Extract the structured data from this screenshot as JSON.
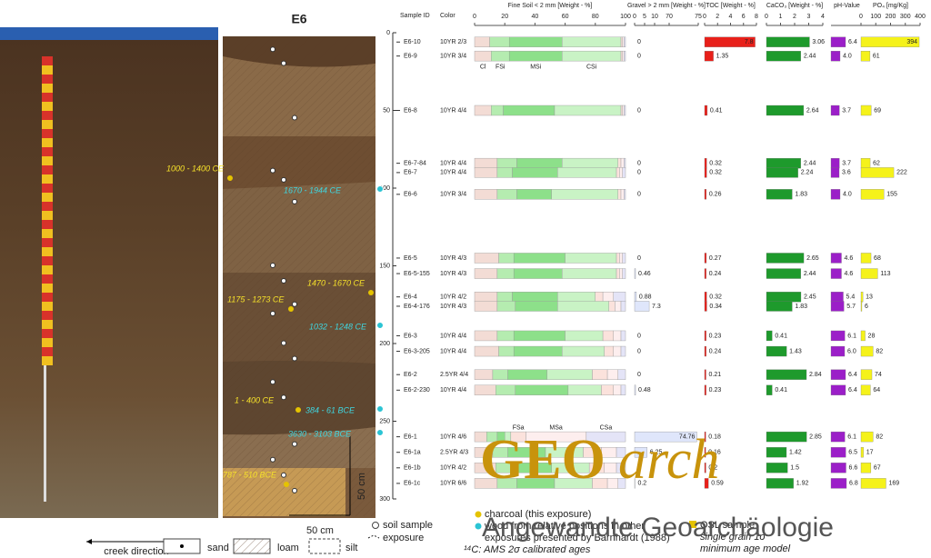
{
  "title": "E6",
  "depth_axis": {
    "ylim": [
      0,
      300
    ],
    "yticks": [
      0,
      50,
      100,
      150,
      200,
      250,
      300
    ]
  },
  "headers": {
    "sample_id": "Sample ID",
    "color": "Color"
  },
  "samples": {
    "ids": [
      "E6-10",
      "E6-9",
      "E6-8",
      "E6-7-84",
      "E6-7",
      "E6-6",
      "E6-5",
      "E6-5-155",
      "E6-4",
      "E6-4-176",
      "E6-3",
      "E6-3-205",
      "E6-2",
      "E6-2-230",
      "E6-1",
      "E6-1a",
      "E6-1b",
      "E6-1c"
    ],
    "depths": [
      6,
      15,
      50,
      84,
      90,
      104,
      145,
      155,
      170,
      176,
      195,
      205,
      220,
      230,
      260,
      270,
      280,
      290
    ],
    "colors": [
      "10YR 2/3",
      "10YR 3/4",
      "10YR 4/4",
      "10YR 4/4",
      "10YR 4/4",
      "10YR 3/4",
      "10YR 4/3",
      "10YR 4/3",
      "10YR 4/2",
      "10YR 4/3",
      "10YR 4/4",
      "10YR 4/4",
      "2.5YR 4/4",
      "10YR 4/4",
      "10YR 4/6",
      "2.5YR 4/3",
      "10YR 4/2",
      "10YR 6/6"
    ]
  },
  "fine_soil": {
    "title": "Fine Soil < 2 mm [Weight - %]",
    "xlim": [
      0,
      100
    ],
    "xticks": [
      0,
      20,
      40,
      60,
      80,
      100
    ],
    "fractions": [
      {
        "name": "Cl",
        "color": "#f3dcd5",
        "values": [
          10,
          11,
          11,
          15,
          15,
          15,
          16,
          15,
          15,
          15,
          15,
          16,
          12,
          14,
          8,
          12,
          14,
          15
        ]
      },
      {
        "name": "FSi",
        "color": "#b5ecb0",
        "values": [
          13,
          12,
          8,
          13,
          10,
          13,
          10,
          11,
          10,
          12,
          11,
          10,
          10,
          13,
          7,
          10,
          12,
          13
        ]
      },
      {
        "name": "MSi",
        "color": "#8de08a",
        "values": [
          35,
          35,
          34,
          30,
          30,
          23,
          34,
          32,
          30,
          28,
          34,
          32,
          26,
          35,
          5,
          25,
          25,
          25
        ]
      },
      {
        "name": "CSi",
        "color": "#c9f3c5",
        "values": [
          39,
          39,
          44,
          37,
          39,
          44,
          34,
          36,
          25,
          34,
          25,
          28,
          30,
          22,
          4,
          25,
          25,
          25
        ]
      },
      {
        "name": "FSa",
        "color": "#fbe2dc",
        "values": [
          1,
          1,
          1,
          2,
          2,
          2,
          2,
          2,
          5,
          4,
          7,
          6,
          10,
          8,
          10,
          12,
          10,
          10
        ]
      },
      {
        "name": "MSa",
        "color": "#fdeeee",
        "values": [
          1,
          1,
          1,
          2,
          2,
          2,
          2,
          2,
          7,
          4,
          5,
          5,
          7,
          5,
          40,
          10,
          8,
          7
        ]
      },
      {
        "name": "CSa",
        "color": "#e4e4f7",
        "values": [
          1,
          1,
          1,
          1,
          2,
          1,
          2,
          2,
          8,
          3,
          3,
          3,
          5,
          3,
          26,
          6,
          6,
          5
        ]
      }
    ]
  },
  "gravel": {
    "title": "Gravel > 2 mm [Weight - %]",
    "color": "#dfe6fb",
    "xlim": [
      0,
      75
    ],
    "xticks": [
      0,
      5,
      10,
      70,
      75
    ],
    "values": [
      0,
      0,
      0,
      0,
      0,
      0,
      0,
      0.46,
      0.88,
      7.3,
      0,
      0,
      0,
      0.48,
      74.76,
      6.25,
      0,
      0.2
    ]
  },
  "toc": {
    "title": "TOC [Weight - %]",
    "color": "#e8201a",
    "xlim": [
      0,
      8
    ],
    "xticks": [
      0,
      2,
      4,
      6,
      8
    ],
    "values": [
      7.8,
      1.35,
      0.41,
      0.32,
      0.32,
      0.26,
      0.27,
      0.24,
      0.32,
      0.34,
      0.23,
      0.24,
      0.21,
      0.23,
      0.18,
      0.16,
      0.2,
      0.59
    ]
  },
  "caco3": {
    "title": "CaCO₃ [Weight - %]",
    "color": "#1e9a2c",
    "xlim": [
      0,
      4
    ],
    "xticks": [
      0,
      1,
      2,
      3,
      4
    ],
    "values": [
      3.06,
      2.44,
      2.64,
      2.44,
      2.24,
      1.83,
      2.65,
      2.44,
      2.45,
      1.83,
      0.41,
      1.43,
      2.84,
      0.41,
      2.85,
      1.42,
      1.5,
      1.92
    ]
  },
  "ph": {
    "title": "pH-Value",
    "color": "#9b1fc8",
    "xlim": [
      0,
      14
    ],
    "values": [
      6.4,
      4.0,
      3.7,
      3.7,
      3.6,
      4.0,
      4.6,
      4.6,
      5.4,
      5.7,
      6.1,
      6.0,
      6.4,
      6.4,
      6.1,
      6.5,
      6.6,
      6.8
    ],
    "value_labels": [
      "6.4",
      "4.0",
      "3.7",
      "3.7",
      "3.6",
      "4.0",
      "4.6",
      "4.6",
      "5.4",
      "5.7",
      "6.1",
      "6.0",
      "6.4",
      "6.4",
      "6.1",
      "6.5",
      "6.6",
      "6.8"
    ]
  },
  "po4": {
    "title": "PO₄ [mg/Kg]",
    "color": "#f5f21a",
    "xlim": [
      0,
      400
    ],
    "xticks": [
      0,
      100,
      200,
      300,
      400
    ],
    "values": [
      394,
      61,
      69,
      62,
      222,
      155,
      68,
      113,
      13,
      6,
      28,
      82,
      74,
      64,
      82,
      17,
      67,
      169
    ]
  },
  "profile_dates": [
    {
      "label": "1000 - 1400 CE",
      "kind": "charcoal"
    },
    {
      "label": "1670 - 1944 CE",
      "kind": "wood"
    },
    {
      "label": "1470 - 1670 CE",
      "kind": "charcoal"
    },
    {
      "label": "1175 - 1273 CE",
      "kind": "charcoal"
    },
    {
      "label": "1032 - 1248 CE",
      "kind": "wood"
    },
    {
      "label": "1 - 400 CE",
      "kind": "charcoal"
    },
    {
      "label": "384 - 61 BCE",
      "kind": "wood"
    },
    {
      "label": "3630 - 3103 BCE",
      "kind": "wood"
    },
    {
      "label": "787 - 510 BCE",
      "kind": "charcoal"
    }
  ],
  "scale": {
    "horizontal": "50 cm",
    "vertical": "50 cm"
  },
  "legend": {
    "soil_sample": "soil sample",
    "exposure": "exposure",
    "charcoal": "charcoal (this exposure)",
    "wood": [
      "wood from relative positions in other",
      "exposures presented by Barnhardt (1988)"
    ],
    "c14": "¹⁴C: AMS 2σ calibrated ages",
    "osl": [
      "OSL sample",
      "single grain 1σ",
      "minimum age model"
    ],
    "creek": "creek direction",
    "sand": "sand",
    "loam": "loam",
    "silt": "silt"
  },
  "watermark": {
    "geo": "GEO",
    "arch": "arch",
    "subtitle": "Angewandte Geoarchäologie"
  }
}
